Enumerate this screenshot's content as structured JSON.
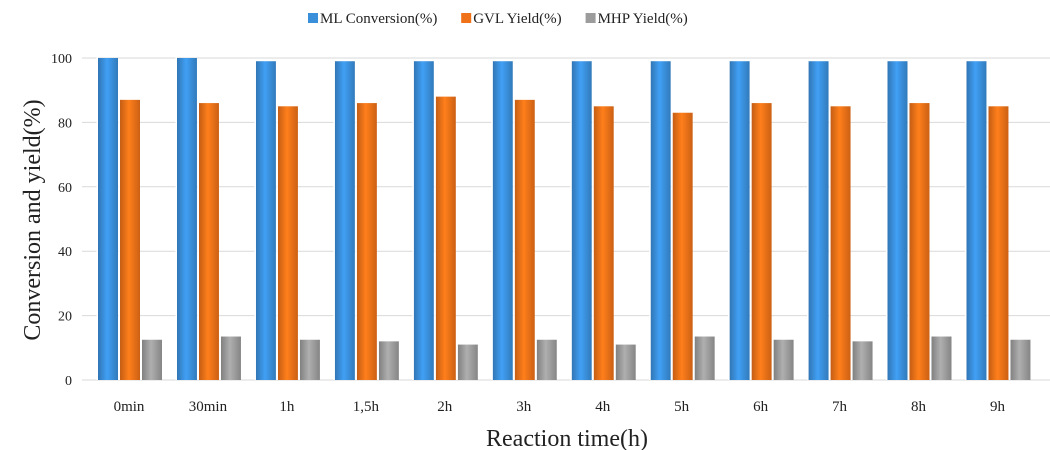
{
  "chart_data": {
    "type": "bar",
    "title": "",
    "xlabel": "Reaction time(h)",
    "ylabel": "Conversion and yield(%)",
    "ylim": [
      0,
      100
    ],
    "yticks": [
      0,
      20,
      40,
      60,
      80,
      100
    ],
    "grid": true,
    "legend_position": "top-center",
    "categories": [
      "0min",
      "30min",
      "1h",
      "1,5h",
      "2h",
      "3h",
      "4h",
      "5h",
      "6h",
      "7h",
      "8h",
      "9h"
    ],
    "series": [
      {
        "name": "ML Conversion(%)",
        "color": "#3a8fdb",
        "values": [
          100,
          100,
          99,
          99,
          99,
          99,
          99,
          99,
          99,
          99,
          99,
          99
        ]
      },
      {
        "name": "GVL Yield(%)",
        "color": "#ef7118",
        "values": [
          87,
          86,
          85,
          86,
          88,
          87,
          85,
          83,
          86,
          85,
          86,
          85
        ]
      },
      {
        "name": "MHP Yield(%)",
        "color": "#9c9c9c",
        "values": [
          12.5,
          13.5,
          12.5,
          12,
          11,
          12.5,
          11,
          13.5,
          12.5,
          12,
          13.5,
          12.5
        ]
      }
    ]
  }
}
